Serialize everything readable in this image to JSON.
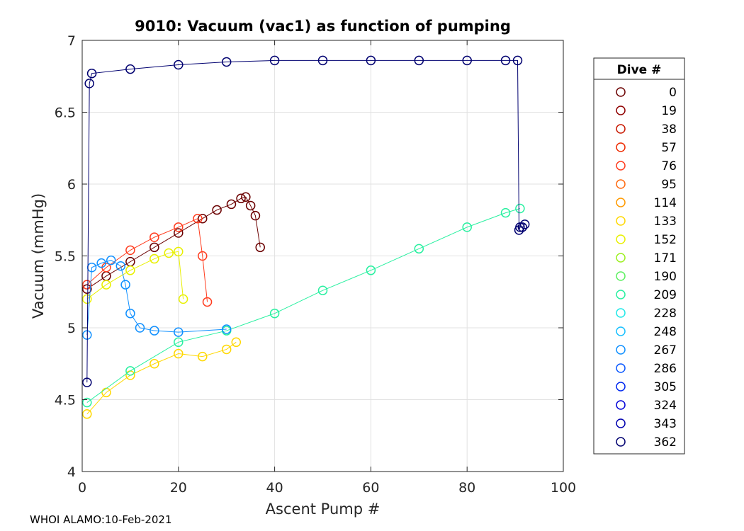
{
  "chart_data": {
    "type": "scatter",
    "title": "9010: Vacuum (vac1) as function of pumping",
    "xlabel": "Ascent Pump #",
    "ylabel": "Vacuum (mmHg)",
    "xlim": [
      0,
      100
    ],
    "ylim": [
      4,
      7
    ],
    "xticks": [
      0,
      20,
      40,
      60,
      80,
      100
    ],
    "yticks": [
      4,
      4.5,
      5,
      5.5,
      6,
      6.5,
      7
    ],
    "grid": true,
    "legend": {
      "title": "Dive #",
      "placement": "right",
      "entries": [
        {
          "label": "0",
          "color": "#6b0000"
        },
        {
          "label": "19",
          "color": "#900000"
        },
        {
          "label": "38",
          "color": "#c81800"
        },
        {
          "label": "57",
          "color": "#ee2a00"
        },
        {
          "label": "76",
          "color": "#ff3c1e"
        },
        {
          "label": "95",
          "color": "#ff6a10"
        },
        {
          "label": "114",
          "color": "#ff9a00"
        },
        {
          "label": "133",
          "color": "#ffd800"
        },
        {
          "label": "152",
          "color": "#e8f000"
        },
        {
          "label": "171",
          "color": "#9cf020"
        },
        {
          "label": "190",
          "color": "#5cf060"
        },
        {
          "label": "209",
          "color": "#28f0a0"
        },
        {
          "label": "228",
          "color": "#20e8e8"
        },
        {
          "label": "248",
          "color": "#18c0ff"
        },
        {
          "label": "267",
          "color": "#1090ff"
        },
        {
          "label": "286",
          "color": "#0a58ff"
        },
        {
          "label": "305",
          "color": "#0028f0"
        },
        {
          "label": "324",
          "color": "#0000d8"
        },
        {
          "label": "343",
          "color": "#0000b0"
        },
        {
          "label": "362",
          "color": "#000070"
        }
      ]
    },
    "series": [
      {
        "name": "0",
        "color": "#6b0000",
        "x": [
          1,
          5,
          10,
          15,
          20,
          25,
          28,
          31,
          33,
          34,
          35,
          36,
          37
        ],
        "y": [
          5.27,
          5.36,
          5.46,
          5.56,
          5.66,
          5.76,
          5.82,
          5.86,
          5.9,
          5.91,
          5.85,
          5.78,
          5.56
        ]
      },
      {
        "name": "76",
        "color": "#ff3c1e",
        "x": [
          1,
          5,
          10,
          15,
          20,
          24,
          25,
          26
        ],
        "y": [
          5.3,
          5.42,
          5.54,
          5.63,
          5.7,
          5.76,
          5.5,
          5.18
        ]
      },
      {
        "name": "133",
        "color": "#ffd800",
        "x": [
          1,
          5,
          10,
          15,
          20,
          25,
          30,
          32
        ],
        "y": [
          4.4,
          4.55,
          4.67,
          4.75,
          4.82,
          4.8,
          4.85,
          4.9
        ]
      },
      {
        "name": "152",
        "color": "#e8f000",
        "x": [
          1,
          5,
          10,
          15,
          18,
          20,
          21
        ],
        "y": [
          5.2,
          5.3,
          5.4,
          5.48,
          5.52,
          5.53,
          5.2
        ]
      },
      {
        "name": "209",
        "color": "#28f0a0",
        "x": [
          1,
          10,
          20,
          30,
          40,
          50,
          60,
          70,
          80,
          88,
          91
        ],
        "y": [
          4.48,
          4.7,
          4.9,
          4.98,
          5.1,
          5.26,
          5.4,
          5.55,
          5.7,
          5.8,
          5.83
        ]
      },
      {
        "name": "267",
        "color": "#1090ff",
        "x": [
          1,
          2,
          4,
          6,
          8,
          9,
          10,
          12,
          15,
          20,
          30
        ],
        "y": [
          4.95,
          5.42,
          5.45,
          5.47,
          5.43,
          5.3,
          5.1,
          5.0,
          4.98,
          4.97,
          4.99
        ]
      },
      {
        "name": "362",
        "color": "#000070",
        "x": [
          1,
          1.5,
          2,
          10,
          20,
          30,
          40,
          50,
          60,
          70,
          80,
          88,
          90.5,
          90.8,
          91,
          91.5,
          92
        ],
        "y": [
          4.62,
          6.7,
          6.77,
          6.8,
          6.83,
          6.85,
          6.86,
          6.86,
          6.86,
          6.86,
          6.86,
          6.86,
          6.86,
          5.68,
          5.7,
          5.7,
          5.72
        ]
      }
    ]
  },
  "footer": "WHOI ALAMO:10-Feb-2021"
}
